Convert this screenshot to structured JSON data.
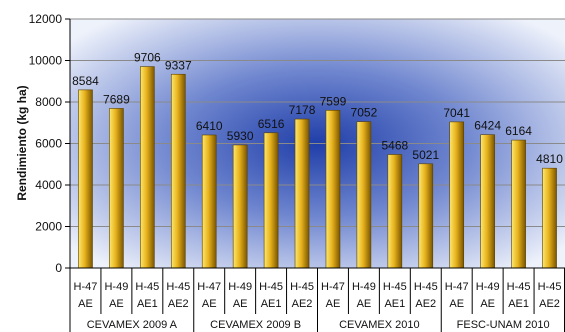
{
  "chart_data": {
    "type": "bar",
    "title": "",
    "xlabel": "",
    "ylabel": "Rendimiento (kg ha)",
    "ylim": [
      0,
      12000
    ],
    "yticks": [
      0,
      2000,
      4000,
      6000,
      8000,
      10000,
      12000
    ],
    "grid": true,
    "legend": "none",
    "categories": [
      [
        "H-47",
        "AE"
      ],
      [
        "H-49",
        "AE"
      ],
      [
        "H-45",
        "AE1"
      ],
      [
        "H-45",
        "AE2"
      ],
      [
        "H-47",
        "AE"
      ],
      [
        "H-49",
        "AE"
      ],
      [
        "H-45",
        "AE1"
      ],
      [
        "H-45",
        "AE2"
      ],
      [
        "H-47",
        "AE"
      ],
      [
        "H-49",
        "AE"
      ],
      [
        "H-45",
        "AE1"
      ],
      [
        "H-45",
        "AE2"
      ],
      [
        "H-47",
        "AE"
      ],
      [
        "H-49",
        "AE"
      ],
      [
        "H-45",
        "AE1"
      ],
      [
        "H-45",
        "AE2"
      ]
    ],
    "groups": [
      "CEVAMEX 2009 A",
      "CEVAMEX 2009 B",
      "CEVAMEX 2010",
      "FESC-UNAM 2010"
    ],
    "values": [
      8584,
      7689,
      9706,
      9337,
      6410,
      5930,
      6516,
      7178,
      7599,
      7052,
      5468,
      5021,
      7041,
      6424,
      6164,
      4810
    ],
    "colors": {
      "bar_light": "#fbe870",
      "bar_mid": "#e8b21c",
      "bar_dark": "#7a5600",
      "background_center": "#1f3ea8",
      "background_edge": "#eef2fb"
    }
  }
}
